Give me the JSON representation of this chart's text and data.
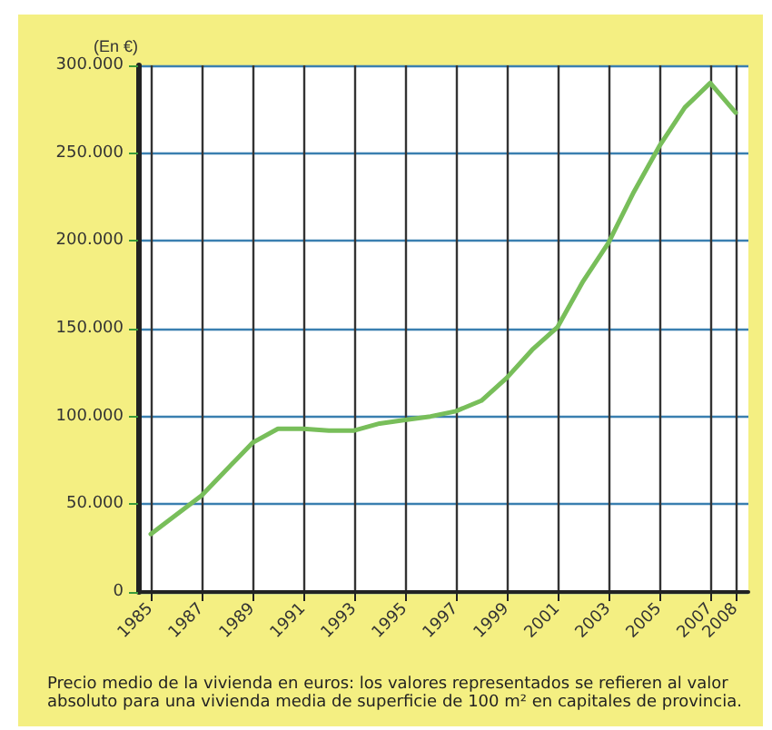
{
  "chart_data": {
    "type": "line",
    "ylabel": "(En €)",
    "x": [
      1985,
      1987,
      1989,
      1990,
      1991,
      1992,
      1993,
      1994,
      1995,
      1996,
      1997,
      1998,
      1999,
      2000,
      2001,
      2002,
      2003,
      2004,
      2005,
      2006,
      2007,
      2008
    ],
    "series": [
      {
        "color": "#78be5a",
        "values": [
          33000,
          55000,
          85000,
          93000,
          93000,
          92000,
          92000,
          96000,
          98000,
          100000,
          103000,
          109000,
          122000,
          138000,
          151000,
          177000,
          199000,
          228000,
          254000,
          276000,
          290000,
          273000
        ]
      }
    ],
    "xlim": [
      1984.5,
      2008.5
    ],
    "xticks": [
      1985,
      1987,
      1989,
      1991,
      1993,
      1995,
      1997,
      1999,
      2001,
      2003,
      2005,
      2007,
      2008
    ],
    "ylim": [
      0,
      300000
    ],
    "yticks": [
      0,
      {
        "value": 50000,
        "label": "50.000"
      },
      {
        "value": 100000,
        "label": "100.000"
      },
      {
        "value": 150000,
        "label": "150.000"
      },
      {
        "value": 200000,
        "label": "200.000"
      },
      {
        "value": 250000,
        "label": "250.000"
      },
      {
        "value": 300000,
        "label": "300.000"
      }
    ],
    "grid": true,
    "marker": "none",
    "line_style": "solid",
    "annotations": [
      "Precio medio de la vivienda en euros: los valores representados se refieren al valor absoluto para una vivienda media de superficie de 100 m² en capitales de provincia."
    ]
  }
}
